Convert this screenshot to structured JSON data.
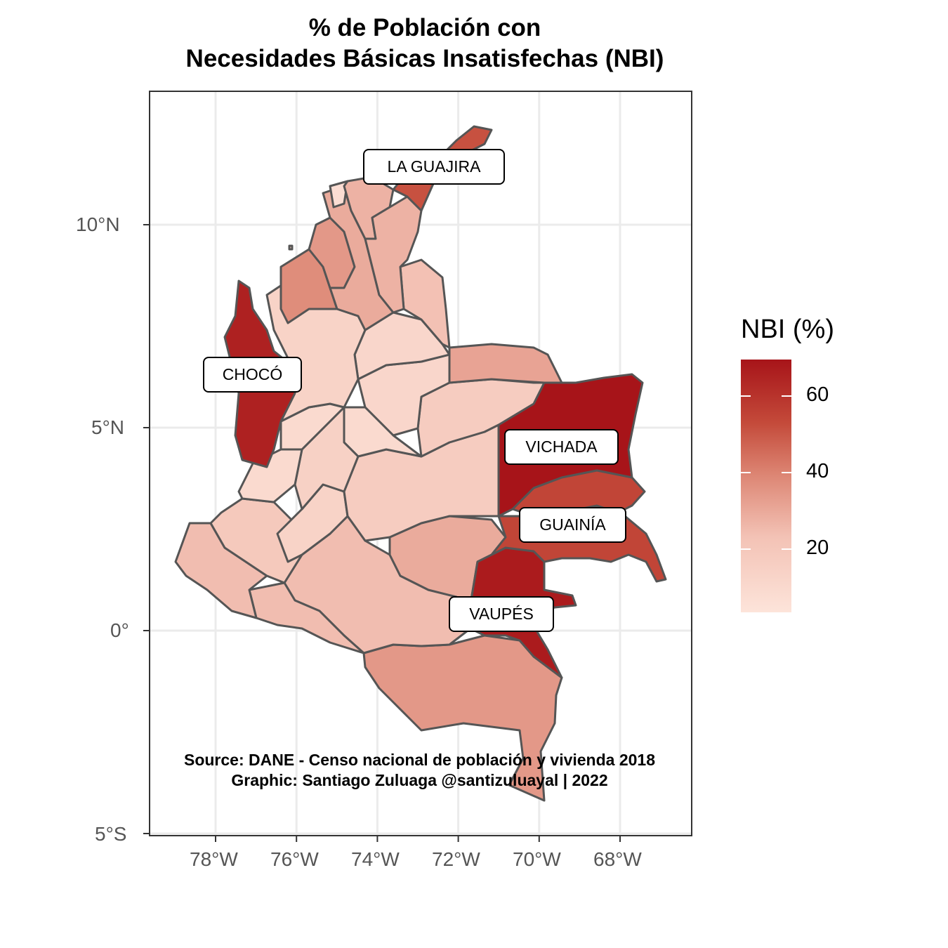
{
  "title": {
    "line1": "% de Población con",
    "line2": "Necesidades Básicas Insatisfechas (NBI)"
  },
  "caption": {
    "line1": "Source: DANE - Censo nacional de población y vivienda 2018",
    "line2": "Graphic: Santiago Zuluaga @santizuluayal | 2022"
  },
  "legend": {
    "title": "NBI (%)",
    "ticks": [
      {
        "value": 20,
        "label": "20"
      },
      {
        "value": 40,
        "label": "40"
      },
      {
        "value": 60,
        "label": "60"
      }
    ],
    "range": [
      4,
      70
    ],
    "colors": {
      "low": "#fde4da",
      "high": "#a71419"
    }
  },
  "axes": {
    "x_ticks": [
      {
        "value": -78,
        "label": "78°W"
      },
      {
        "value": -76,
        "label": "76°W"
      },
      {
        "value": -74,
        "label": "74°W"
      },
      {
        "value": -72,
        "label": "72°W"
      },
      {
        "value": -70,
        "label": "70°W"
      },
      {
        "value": -68,
        "label": "68°W"
      }
    ],
    "y_ticks": [
      {
        "value": 10,
        "label": "10°N"
      },
      {
        "value": 5,
        "label": "5°N"
      },
      {
        "value": 0,
        "label": "0°"
      },
      {
        "value": -5,
        "label": "5°S"
      }
    ],
    "xlim": [
      -79.6,
      -66.2
    ],
    "ylim": [
      -5.0,
      13.0
    ]
  },
  "labels": [
    {
      "text": "LA GUAJIRA",
      "lon": -72.6,
      "lat": 11.45
    },
    {
      "text": "CHOCÓ",
      "lon": -77.1,
      "lat": 6.35
    },
    {
      "text": "VICHADA",
      "lon": -69.5,
      "lat": 4.5
    },
    {
      "text": "GUAINÍA",
      "lon": -69.2,
      "lat": 2.6
    },
    {
      "text": "VAUPÉS",
      "lon": -70.6,
      "lat": 0.4
    }
  ],
  "colors": {
    "border": "#555555",
    "grid": "#ebebeb",
    "panel_border": "#333333"
  }
}
